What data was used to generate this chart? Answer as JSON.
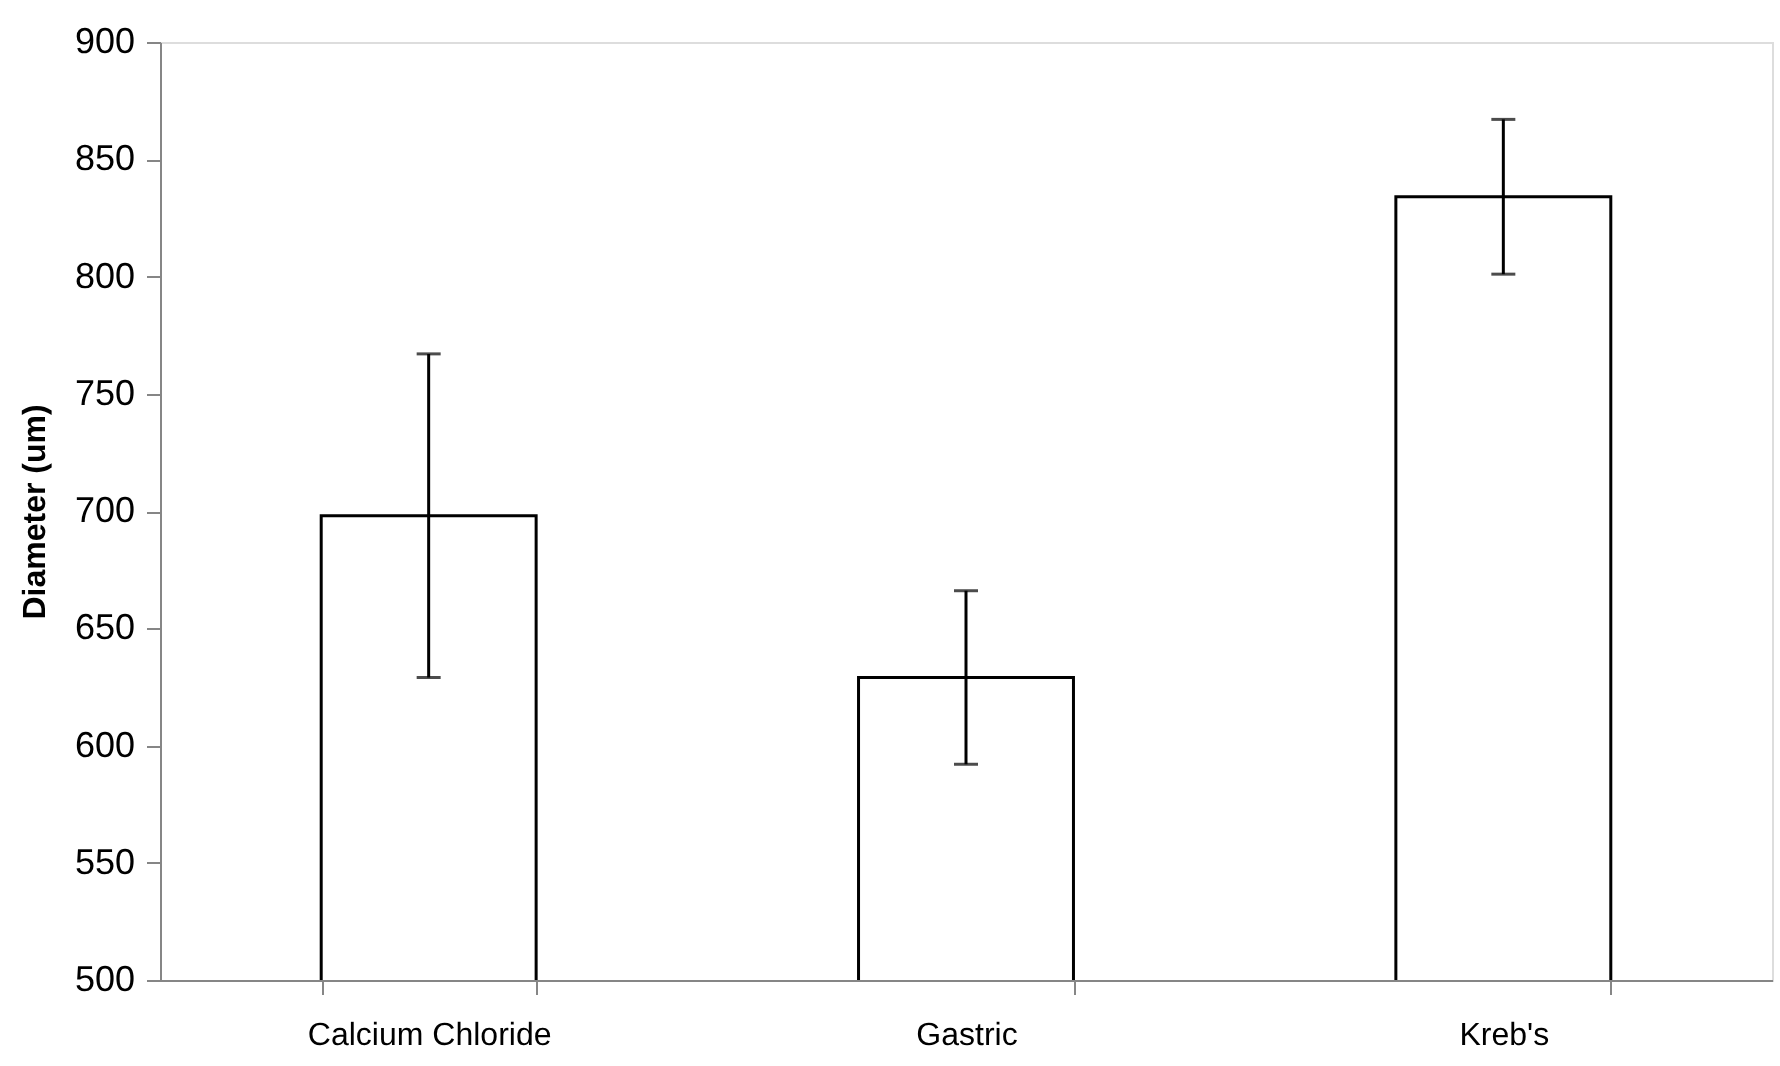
{
  "chart_data": {
    "type": "bar",
    "ylabel": "Diameter (um)",
    "categories": [
      "Calcium Chloride",
      "Gastric",
      "Kreb's"
    ],
    "values": [
      698,
      629,
      834
    ],
    "errors": [
      69,
      37,
      33
    ],
    "color": "#ffffff",
    "ylim": [
      500,
      900
    ],
    "yticks": [
      500,
      550,
      600,
      650,
      700,
      750,
      800,
      850,
      900
    ],
    "grid": false
  }
}
